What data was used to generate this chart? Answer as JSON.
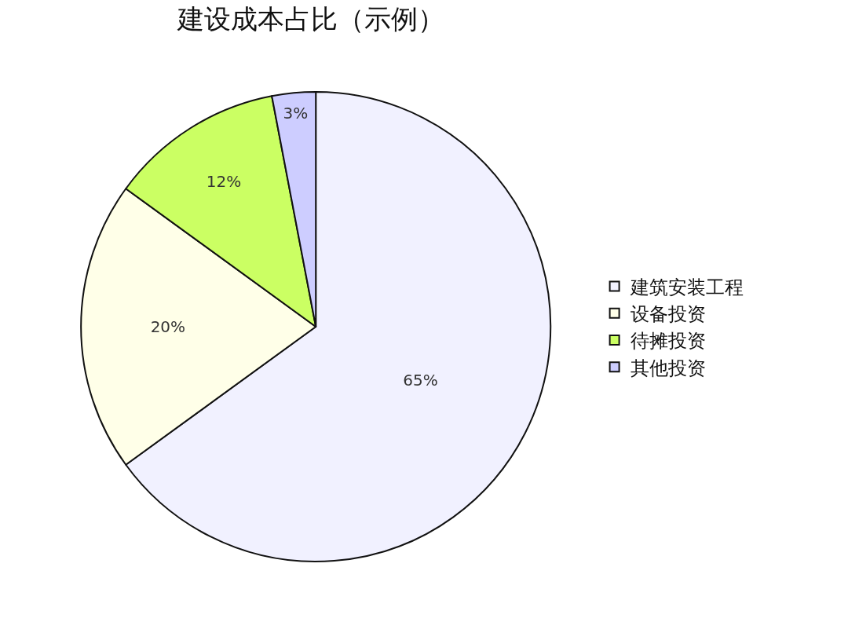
{
  "chart_data": {
    "type": "pie",
    "title": "建设成本占比（示例）",
    "categories": [
      "建筑安装工程",
      "设备投资",
      "待摊投资",
      "其他投资"
    ],
    "values": [
      65,
      20,
      12,
      3
    ],
    "colors": [
      "#f1f1ff",
      "#ffffe8",
      "#cbff63",
      "#cdcdff"
    ],
    "value_labels": [
      "65%",
      "20%",
      "12%",
      "3%"
    ],
    "legend": "right"
  }
}
